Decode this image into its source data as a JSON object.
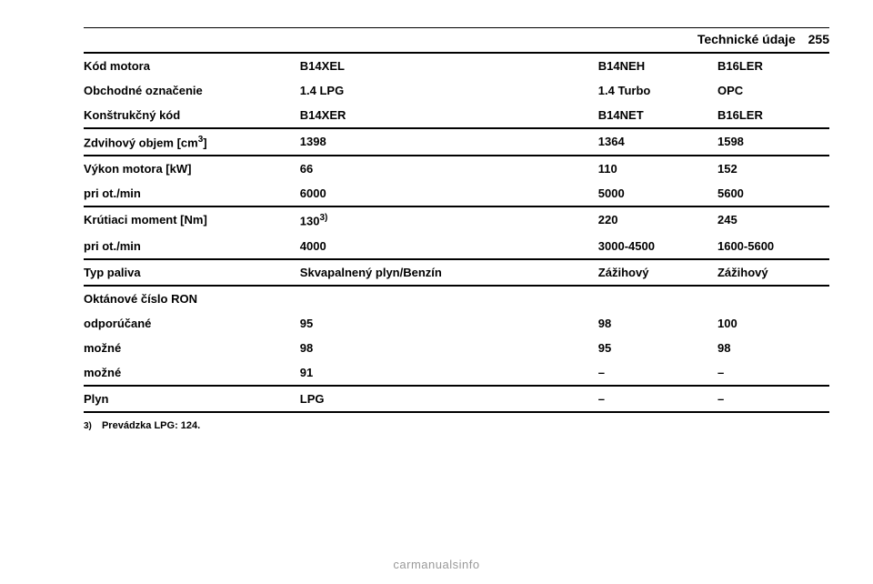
{
  "header": {
    "section_title": "Technické údaje",
    "page_number": "255"
  },
  "table": {
    "rows": [
      {
        "c1": "Kód motora",
        "c2": "B14XEL",
        "c3": "B14NEH",
        "c4": "B16LER",
        "rule": false
      },
      {
        "c1": "Obchodné označenie",
        "c2": "1.4 LPG",
        "c3": "1.4 Turbo",
        "c4": "OPC",
        "rule": false
      },
      {
        "c1": "Konštrukčný kód",
        "c2": "B14XER",
        "c3": "B14NET",
        "c4": "B16LER",
        "rule": true
      },
      {
        "c1_html": "Zdvihový objem [cm<sup>3</sup>]",
        "c2": "1398",
        "c3": "1364",
        "c4": "1598",
        "rule": true
      },
      {
        "c1": "Výkon motora [kW]",
        "c2": "66",
        "c3": "110",
        "c4": "152",
        "rule": false
      },
      {
        "c1": "pri ot./min",
        "c2": "6000",
        "c3": "5000",
        "c4": "5600",
        "rule": true
      },
      {
        "c1": "Krútiaci moment [Nm]",
        "c2_html": "130<sup>3)</sup>",
        "c3": "220",
        "c4": "245",
        "rule": false
      },
      {
        "c1": "pri ot./min",
        "c2": "4000",
        "c3": "3000-4500",
        "c4": "1600-5600",
        "rule": true
      },
      {
        "c1": "Typ paliva",
        "c2": "Skvapalnený plyn/Benzín",
        "c3": "Zážihový",
        "c4": "Zážihový",
        "rule": true
      },
      {
        "c1": "Oktánové číslo RON",
        "c2": "",
        "c3": "",
        "c4": "",
        "rule": false
      },
      {
        "c1": "odporúčané",
        "c2": "95",
        "c3": "98",
        "c4": "100",
        "rule": false
      },
      {
        "c1": "možné",
        "c2": "98",
        "c3": "95",
        "c4": "98",
        "rule": false
      },
      {
        "c1": "možné",
        "c2": "91",
        "c3": "–",
        "c4": "–",
        "rule": true
      },
      {
        "c1": "Plyn",
        "c2": "LPG",
        "c3": "–",
        "c4": "–",
        "rule": true
      }
    ]
  },
  "footnote": {
    "marker": "3)",
    "text": "Prevádzka LPG: 124."
  },
  "footer": {
    "text": "carmanualsinfo"
  }
}
